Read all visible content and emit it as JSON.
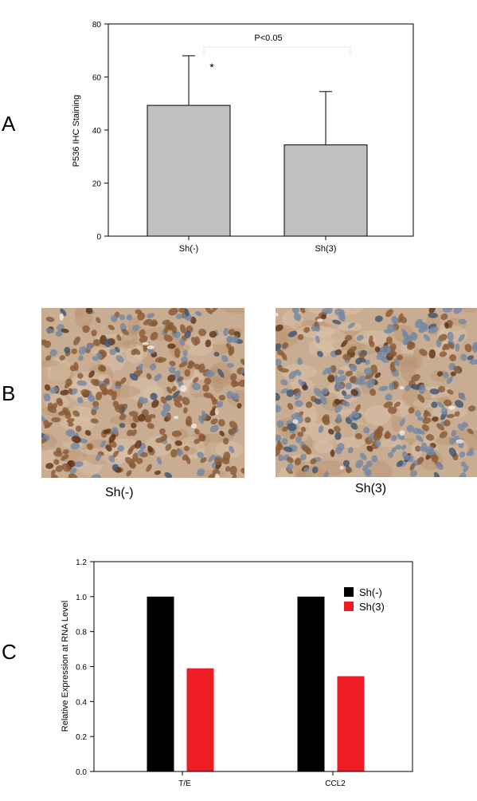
{
  "panels": {
    "a": "A",
    "b": "B",
    "c": "C"
  },
  "chart_data": [
    {
      "type": "bar",
      "categories": [
        "Sh(-)",
        "Sh(3)"
      ],
      "values": [
        49.3,
        34.4
      ],
      "error_upper": [
        68,
        54.5
      ],
      "ylabel": "P536 IHC Staining",
      "xlabel": "",
      "ylim": [
        0,
        80
      ],
      "yticks": [
        "0",
        "20",
        "40",
        "60",
        "80"
      ],
      "annotation": "P<0.05",
      "significance": "*",
      "bar_color": "#c0c0c0"
    },
    {
      "type": "bar",
      "categories": [
        "T/E",
        "CCL2"
      ],
      "series": [
        {
          "name": "Sh(-)",
          "values": [
            1.0,
            1.0
          ],
          "color": "#000000"
        },
        {
          "name": "Sh(3)",
          "values": [
            0.59,
            0.545
          ],
          "color": "#ee1c25"
        }
      ],
      "ylabel": "Relative Expression at RNA Level",
      "xlabel": "",
      "ylim": [
        0,
        1.2
      ],
      "yticks": [
        "0.0",
        "0.2",
        "0.4",
        "0.6",
        "0.8",
        "1.0",
        "1.2"
      ],
      "legend": "top-right"
    }
  ],
  "images": {
    "left_label": "Sh(-)",
    "right_label": "Sh(3)"
  }
}
